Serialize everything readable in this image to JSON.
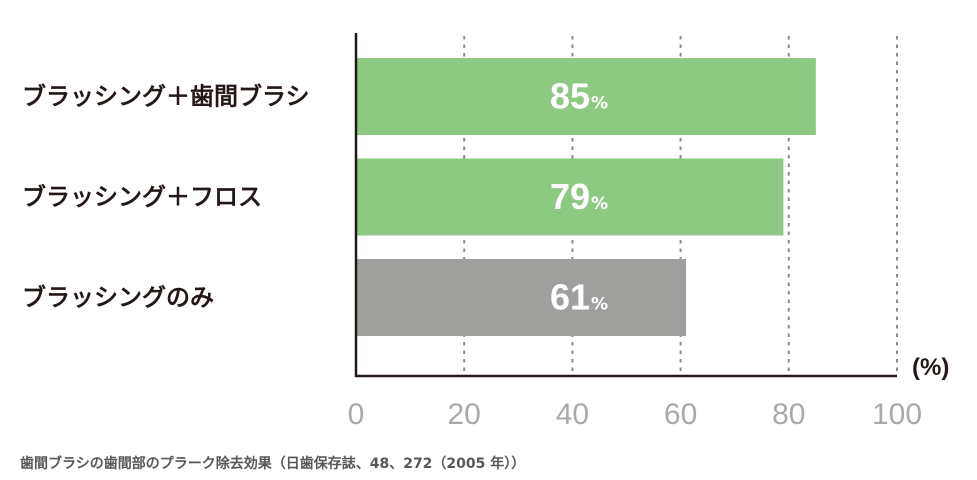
{
  "chart_data": {
    "type": "bar",
    "orientation": "horizontal",
    "unit_label": "(%)",
    "categories": [
      "ブラッシング＋歯間ブラシ",
      "ブラッシング＋フロス",
      "ブラッシングのみ"
    ],
    "values": [
      85,
      79,
      61
    ],
    "value_suffix": "%",
    "bar_colors": [
      "#8ec983",
      "#8ec983",
      "#9fa09e"
    ],
    "xlim": [
      0,
      100
    ],
    "xticks": [
      0,
      20,
      40,
      60,
      80,
      100
    ],
    "grid": true,
    "legend": "none"
  },
  "caption": "歯間ブラシの歯間部のプラーク除去効果（日歯保存誌、48、272（2005 年））",
  "colors": {
    "category_text": "#231815",
    "value_text": "#ffffff",
    "tick_text": "#a9a9a9",
    "gridline": "#8a8a8a",
    "axis": "#231815",
    "caption_text": "#595757"
  }
}
